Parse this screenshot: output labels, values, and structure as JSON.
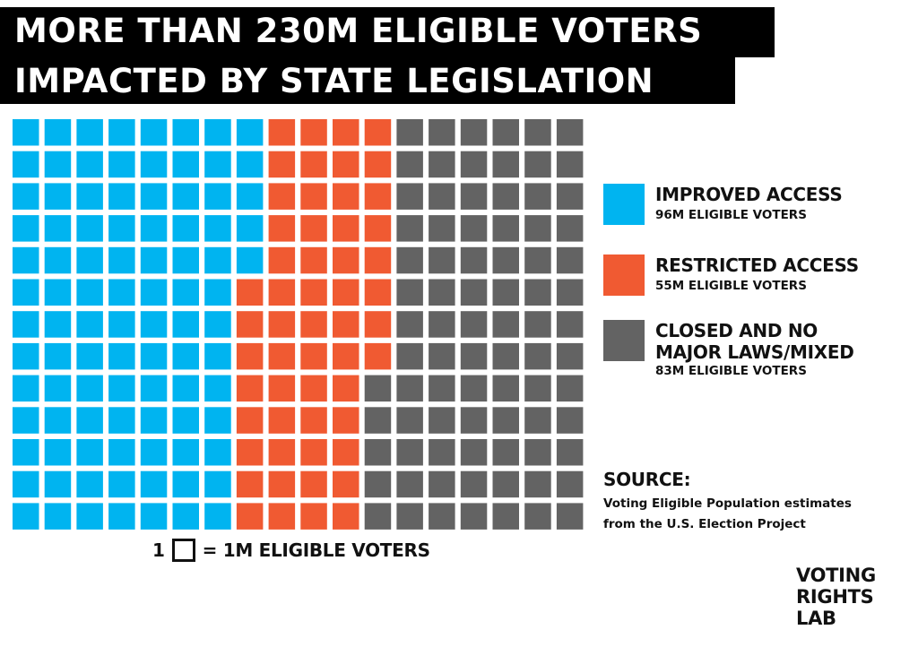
{
  "header": {
    "title_line_1": "MORE THAN 230M ELIGIBLE VOTERS",
    "title_line_2": "IMPACTED BY STATE LEGISLATION"
  },
  "chart_data": {
    "type": "waffle",
    "columns": 18,
    "rows": 13,
    "unit": "1M eligible voters",
    "fill_order": "column-major, top-to-bottom, left-to-right",
    "series": [
      {
        "name": "IMPROVED ACCESS",
        "label_value": "96M ELIGIBLE VOTERS",
        "value": 96,
        "color": "#00b4f0"
      },
      {
        "name": "RESTRICTED ACCESS",
        "label_value": "55M ELIGIBLE VOTERS",
        "value": 55,
        "color": "#f05a32"
      },
      {
        "name_lines": [
          "CLOSED AND NO",
          "MAJOR LAWS/MIXED"
        ],
        "label_value": "83M ELIGIBLE VOTERS",
        "value": 83,
        "color": "#636363"
      }
    ],
    "legend_position": "right"
  },
  "scale_note": {
    "count": "1",
    "text": "= 1M ELIGIBLE VOTERS"
  },
  "source": {
    "heading": "SOURCE:",
    "line_1": "Voting Eligible Population estimates",
    "line_2": "from the U.S. Election Project"
  },
  "logo": {
    "line_1": "VOTING",
    "line_2": "RIGHTS",
    "line_3": "LAB"
  }
}
